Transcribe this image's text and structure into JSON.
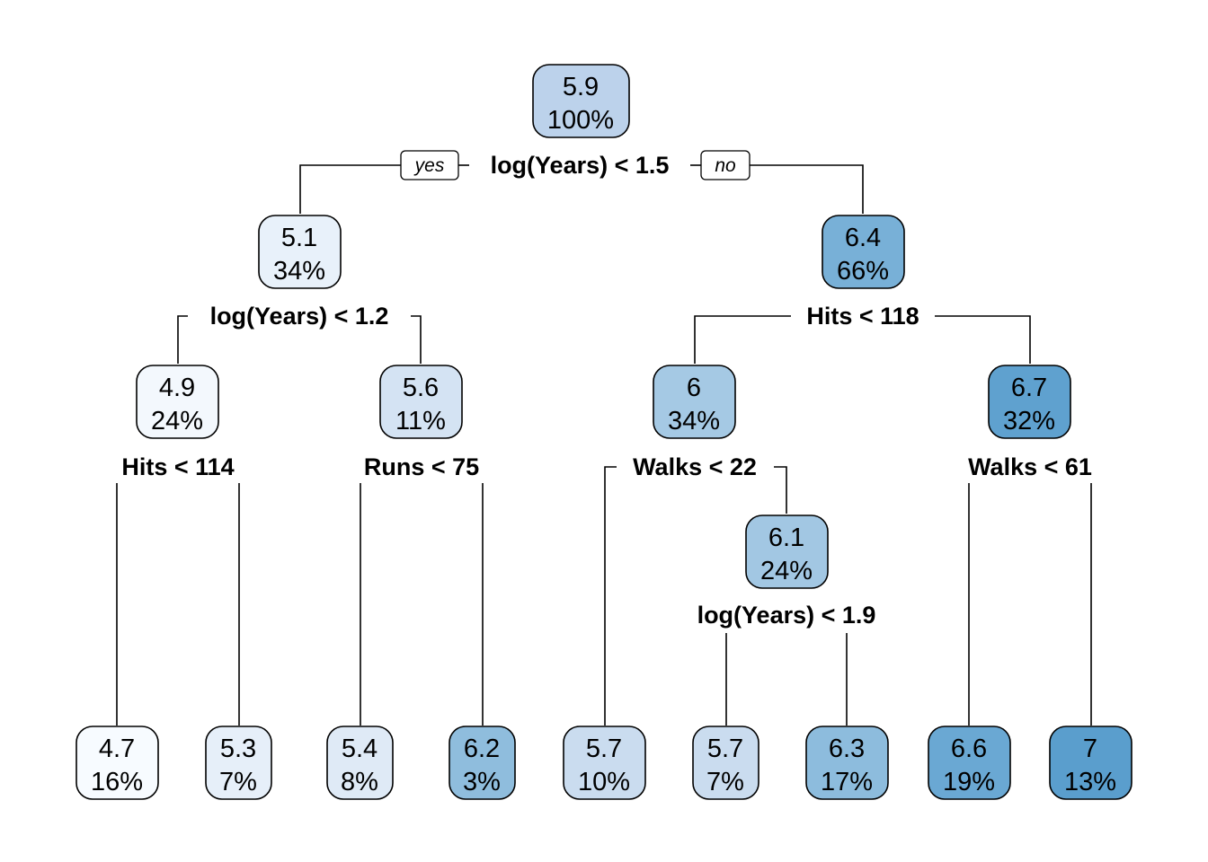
{
  "tree": {
    "branch_labels": {
      "yes": "yes",
      "no": "no"
    },
    "nodes": [
      {
        "id": "root",
        "value": "5.9",
        "percent": "100%",
        "fill": "#bcd2eb"
      },
      {
        "id": "n2",
        "value": "5.1",
        "percent": "34%",
        "fill": "#e8f1fa"
      },
      {
        "id": "n3",
        "value": "6.4",
        "percent": "66%",
        "fill": "#78b0d7"
      },
      {
        "id": "n4",
        "value": "4.9",
        "percent": "24%",
        "fill": "#f3f8fd"
      },
      {
        "id": "n5",
        "value": "5.6",
        "percent": "11%",
        "fill": "#d4e3f3"
      },
      {
        "id": "n6",
        "value": "6",
        "percent": "34%",
        "fill": "#a5c9e4"
      },
      {
        "id": "n7",
        "value": "6.7",
        "percent": "32%",
        "fill": "#5fa1cf"
      },
      {
        "id": "n13",
        "value": "6.1",
        "percent": "24%",
        "fill": "#a2c7e3"
      },
      {
        "id": "leaf1",
        "value": "4.7",
        "percent": "16%",
        "fill": "#f7fbff"
      },
      {
        "id": "leaf2",
        "value": "5.3",
        "percent": "7%",
        "fill": "#e6eff9"
      },
      {
        "id": "leaf3",
        "value": "5.4",
        "percent": "8%",
        "fill": "#dfeaf6"
      },
      {
        "id": "leaf4",
        "value": "6.2",
        "percent": "3%",
        "fill": "#8fbddd"
      },
      {
        "id": "leaf5",
        "value": "5.7",
        "percent": "10%",
        "fill": "#cadcef"
      },
      {
        "id": "leaf6",
        "value": "5.7",
        "percent": "7%",
        "fill": "#cadcef"
      },
      {
        "id": "leaf7",
        "value": "6.3",
        "percent": "17%",
        "fill": "#8dbcdd"
      },
      {
        "id": "leaf8",
        "value": "6.6",
        "percent": "19%",
        "fill": "#6aa8d3"
      },
      {
        "id": "leaf9",
        "value": "7",
        "percent": "13%",
        "fill": "#5a9ecd"
      }
    ],
    "splits": [
      {
        "id": "root",
        "label": "log(Years) < 1.5"
      },
      {
        "id": "n2",
        "label": "log(Years) < 1.2"
      },
      {
        "id": "n3",
        "label": "Hits < 118"
      },
      {
        "id": "n4",
        "label": "Hits < 114"
      },
      {
        "id": "n5",
        "label": "Runs < 75"
      },
      {
        "id": "n6",
        "label": "Walks < 22"
      },
      {
        "id": "n7",
        "label": "Walks < 61"
      },
      {
        "id": "n13",
        "label": "log(Years) < 1.9"
      }
    ]
  }
}
